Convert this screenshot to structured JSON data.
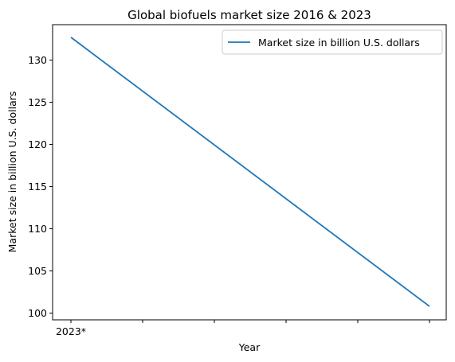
{
  "chart_data": {
    "type": "line",
    "title": "Global biofuels market size 2016 & 2023",
    "xlabel": "Year",
    "ylabel": "Market size in billion U.S. dollars",
    "x_tick_labels": [
      "2023*",
      "",
      "",
      "",
      "",
      ""
    ],
    "y_ticks": [
      100,
      105,
      110,
      115,
      120,
      125,
      130
    ],
    "ylim": [
      99.2,
      134.2
    ],
    "grid": false,
    "legend_position": "top-right",
    "series": [
      {
        "name": "Market size in billion U.S. dollars",
        "color": "#1f77b4",
        "values": [
          132.7,
          100.8
        ]
      }
    ]
  }
}
